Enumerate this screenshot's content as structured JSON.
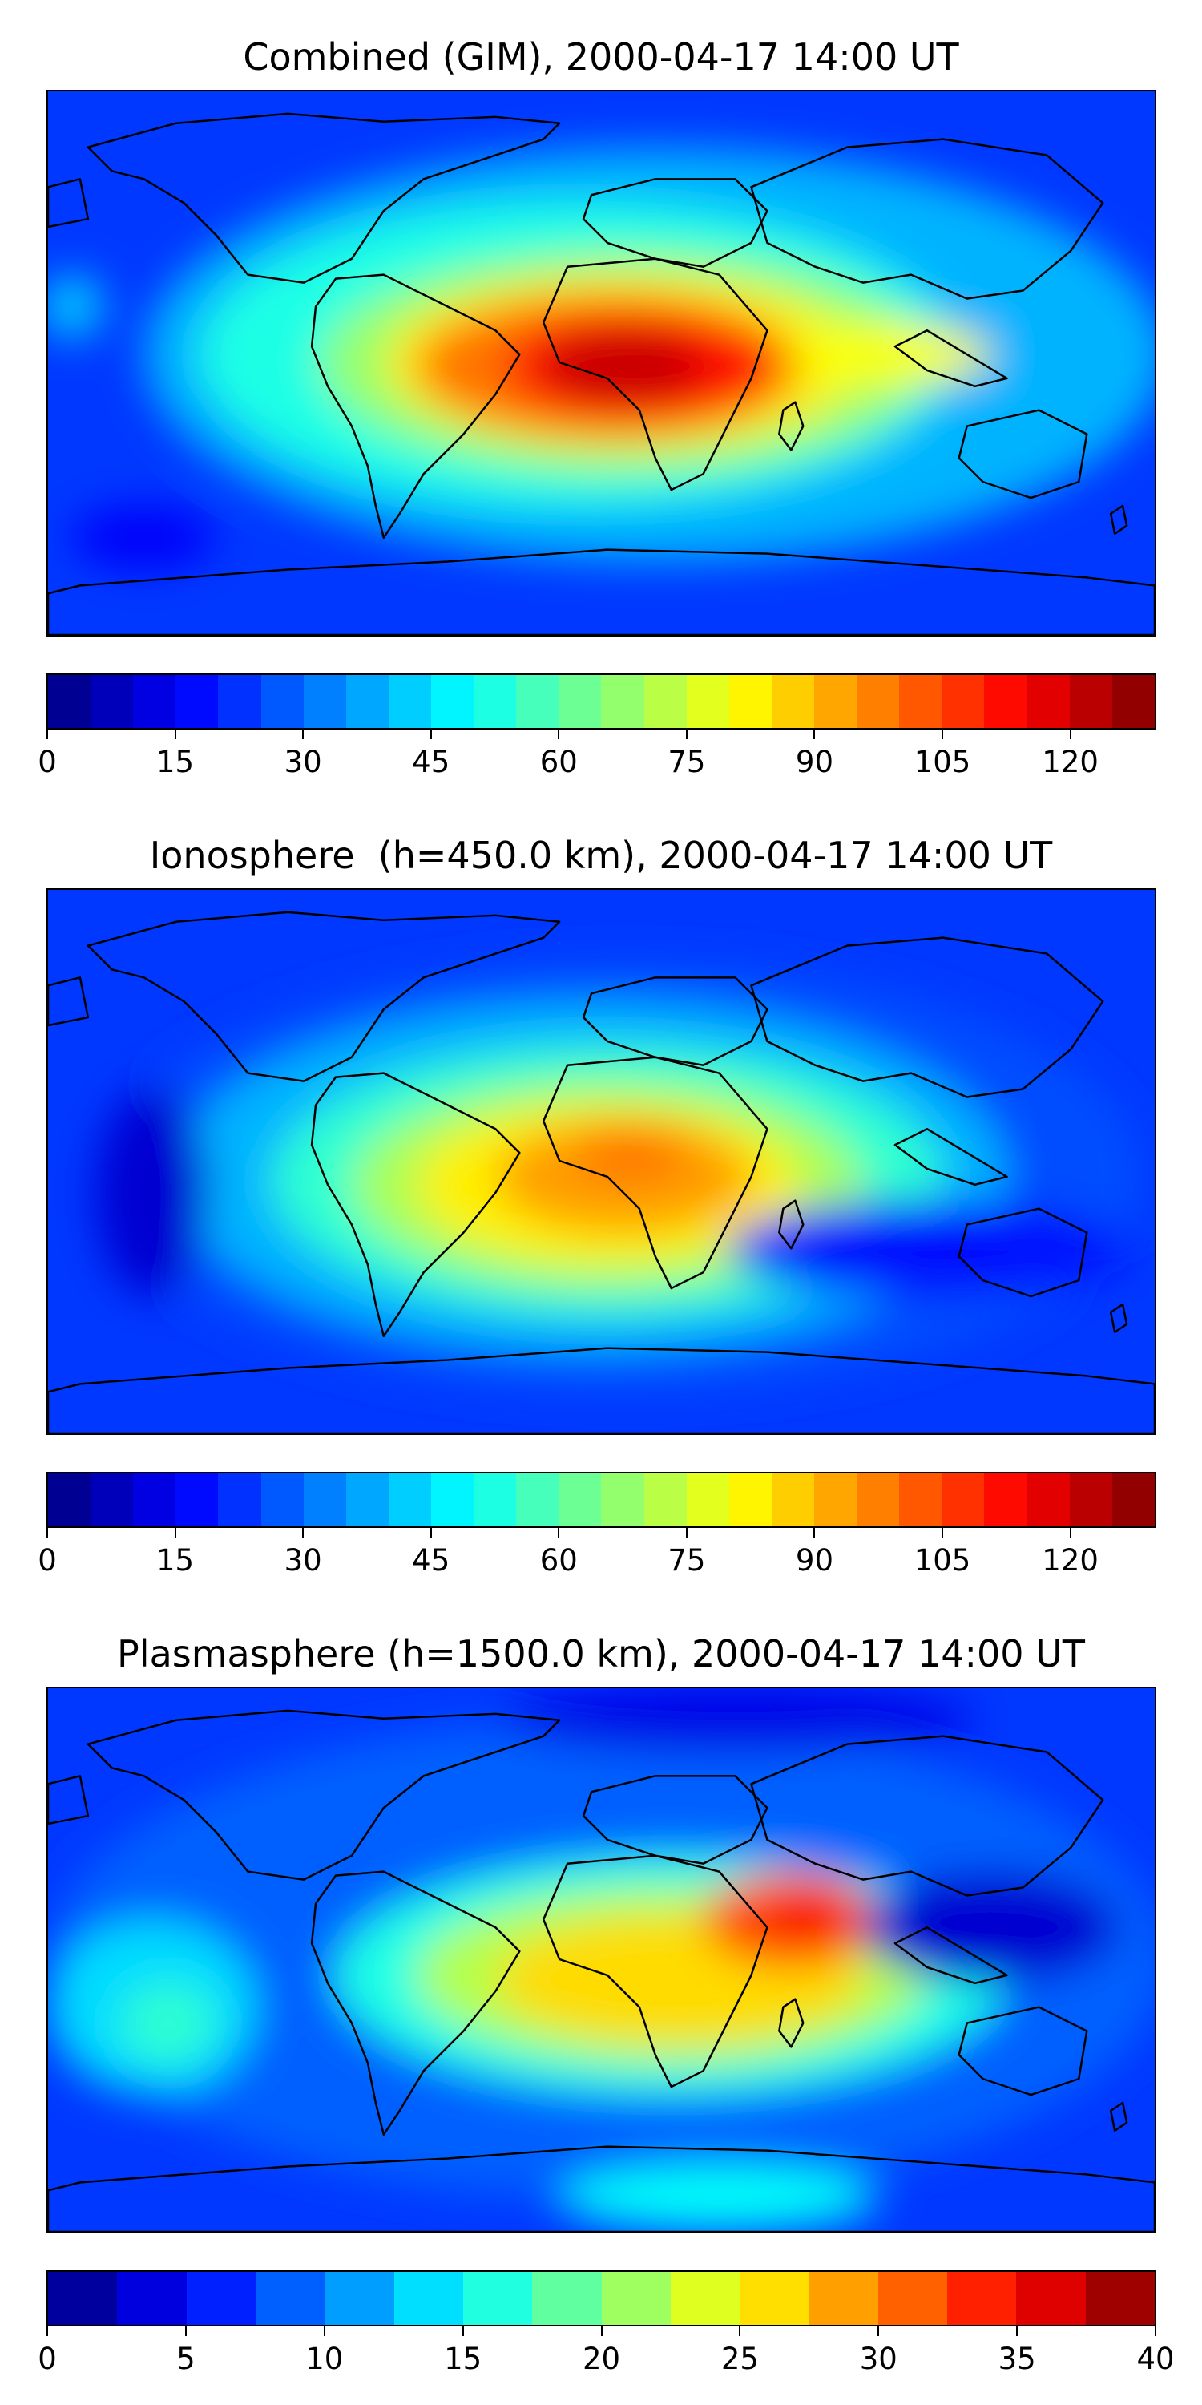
{
  "panels": [
    {
      "id": "combined",
      "title": "Combined (GIM), 2000-04-17 14:00 UT",
      "colorbar": {
        "min": 0,
        "max": 130,
        "levels": [
          0,
          5,
          10,
          15,
          20,
          25,
          30,
          35,
          40,
          45,
          50,
          55,
          60,
          65,
          70,
          75,
          80,
          85,
          90,
          95,
          100,
          105,
          110,
          115,
          120,
          125,
          130
        ],
        "ticks": [
          "0",
          "15",
          "30",
          "45",
          "60",
          "75",
          "90",
          "105",
          "120"
        ]
      }
    },
    {
      "id": "ionosphere",
      "title": "Ionosphere  (h=450.0 km), 2000-04-17 14:00 UT",
      "colorbar": {
        "min": 0,
        "max": 130,
        "levels": [
          0,
          5,
          10,
          15,
          20,
          25,
          30,
          35,
          40,
          45,
          50,
          55,
          60,
          65,
          70,
          75,
          80,
          85,
          90,
          95,
          100,
          105,
          110,
          115,
          120,
          125,
          130
        ],
        "ticks": [
          "0",
          "15",
          "30",
          "45",
          "60",
          "75",
          "90",
          "105",
          "120"
        ]
      }
    },
    {
      "id": "plasmasphere",
      "title": "Plasmasphere (h=1500.0 km), 2000-04-17 14:00 UT",
      "colorbar": {
        "min": 0,
        "max": 40,
        "levels": [
          0,
          2.5,
          5,
          7.5,
          10,
          12.5,
          15,
          17.5,
          20,
          22.5,
          25,
          27.5,
          30,
          32.5,
          35,
          37.5,
          40
        ],
        "ticks": [
          "0",
          "5",
          "10",
          "15",
          "20",
          "25",
          "30",
          "35",
          "40"
        ]
      }
    }
  ],
  "colormap": "jet",
  "coastline_color": "#000000"
}
